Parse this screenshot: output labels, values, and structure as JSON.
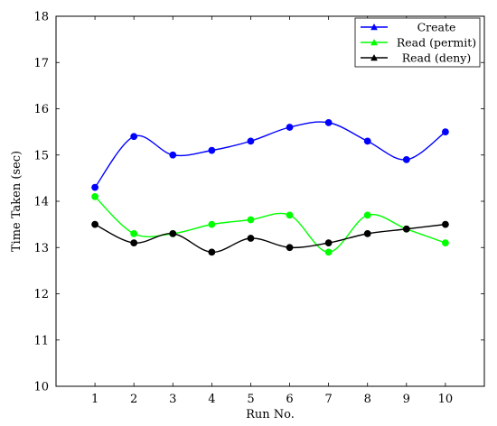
{
  "chart_data": {
    "type": "line",
    "xlabel": "Run No.",
    "ylabel": "Time Taken (sec)",
    "x": [
      1,
      2,
      3,
      4,
      5,
      6,
      7,
      8,
      9,
      10
    ],
    "xticks": [
      "1",
      "2",
      "3",
      "4",
      "5",
      "6",
      "7",
      "8",
      "9",
      "10"
    ],
    "yticks": [
      "10",
      "11",
      "12",
      "13",
      "14",
      "15",
      "16",
      "17",
      "18"
    ],
    "xlim": [
      0,
      11
    ],
    "ylim": [
      10,
      18
    ],
    "grid": false,
    "legend_position": "top-right",
    "smooth": true,
    "series": [
      {
        "name": "Create",
        "color": "#0000ff",
        "marker": "circle",
        "legend_marker": "triangle",
        "values": [
          14.3,
          15.4,
          15.0,
          15.1,
          15.3,
          15.6,
          15.7,
          15.3,
          14.9,
          15.5
        ]
      },
      {
        "name": "Read (permit)",
        "color": "#00ff00",
        "marker": "circle",
        "legend_marker": "triangle",
        "values": [
          14.1,
          13.3,
          13.3,
          13.5,
          13.6,
          13.7,
          12.9,
          13.7,
          13.4,
          13.1
        ]
      },
      {
        "name": "Read (deny)",
        "color": "#000000",
        "marker": "circle",
        "legend_marker": "triangle",
        "values": [
          13.5,
          13.1,
          13.3,
          12.9,
          13.2,
          13.0,
          13.1,
          13.3,
          13.4,
          13.5
        ]
      }
    ]
  }
}
